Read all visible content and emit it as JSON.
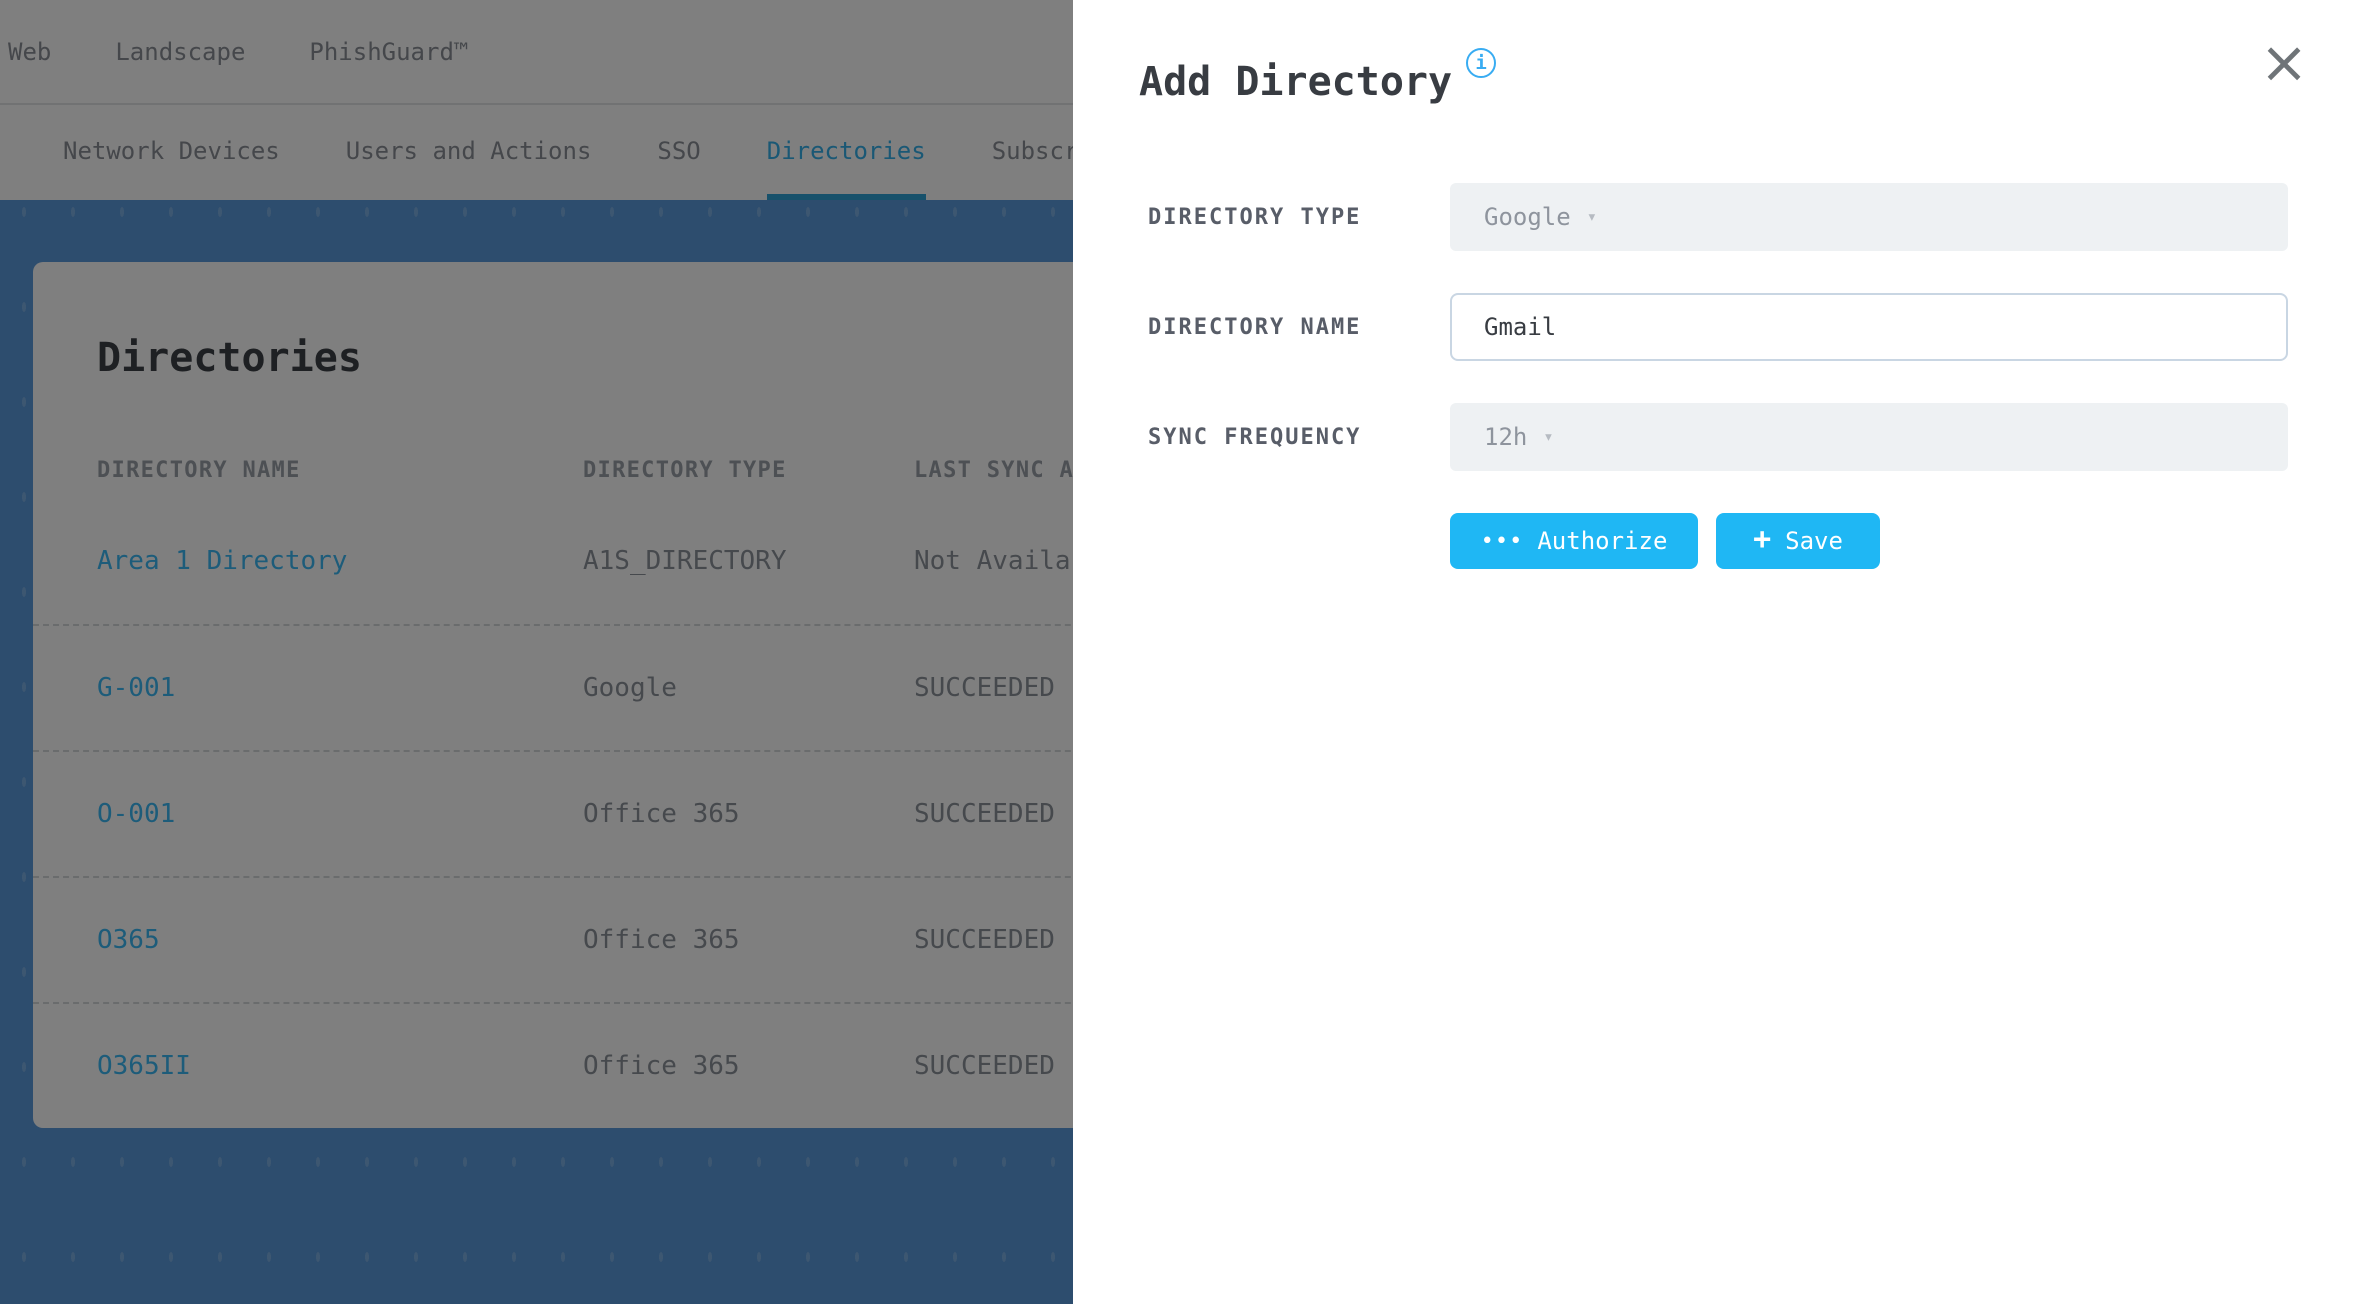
{
  "colors": {
    "accent": "#1fb7f4",
    "link": "#3bb8f5",
    "tab_active": "#35b0ea",
    "tab_underline": "#2fa3d6",
    "page_bg": "#5a9adc",
    "info": "#38acf2"
  },
  "topnav": {
    "items": [
      {
        "label": "Web"
      },
      {
        "label": "Landscape"
      },
      {
        "label": "PhishGuard™"
      }
    ]
  },
  "tabs": {
    "items": [
      {
        "label": "Network Devices",
        "active": false
      },
      {
        "label": "Users and Actions",
        "active": false
      },
      {
        "label": "SSO",
        "active": false
      },
      {
        "label": "Directories",
        "active": true
      },
      {
        "label": "Subscri",
        "active": false
      }
    ]
  },
  "directories_page": {
    "title": "Directories",
    "columns": [
      "DIRECTORY NAME",
      "DIRECTORY TYPE",
      "LAST SYNC A"
    ],
    "rows": [
      {
        "name": "Area 1 Directory",
        "type": "A1S_DIRECTORY",
        "last_sync": "Not Availa"
      },
      {
        "name": "G-001",
        "type": "Google",
        "last_sync": "SUCCEEDED"
      },
      {
        "name": "O-001",
        "type": "Office 365",
        "last_sync": "SUCCEEDED"
      },
      {
        "name": "O365",
        "type": "Office 365",
        "last_sync": "SUCCEEDED"
      },
      {
        "name": "O365II",
        "type": "Office 365",
        "last_sync": "SUCCEEDED"
      }
    ]
  },
  "modal": {
    "title": "Add Directory",
    "fields": [
      {
        "label": "DIRECTORY TYPE",
        "control": "select",
        "value": "Google"
      },
      {
        "label": "DIRECTORY NAME",
        "control": "text-input",
        "value": "Gmail"
      },
      {
        "label": "SYNC FREQUENCY",
        "control": "select",
        "value": "12h"
      }
    ],
    "buttons": [
      {
        "label": "Authorize",
        "icon": "ellipsis-icon"
      },
      {
        "label": "Save",
        "icon": "plus-icon"
      }
    ]
  },
  "icons": {
    "chevron_down": "▾",
    "ellipsis": "•••",
    "plus": "+",
    "info": "i",
    "close": "×"
  }
}
